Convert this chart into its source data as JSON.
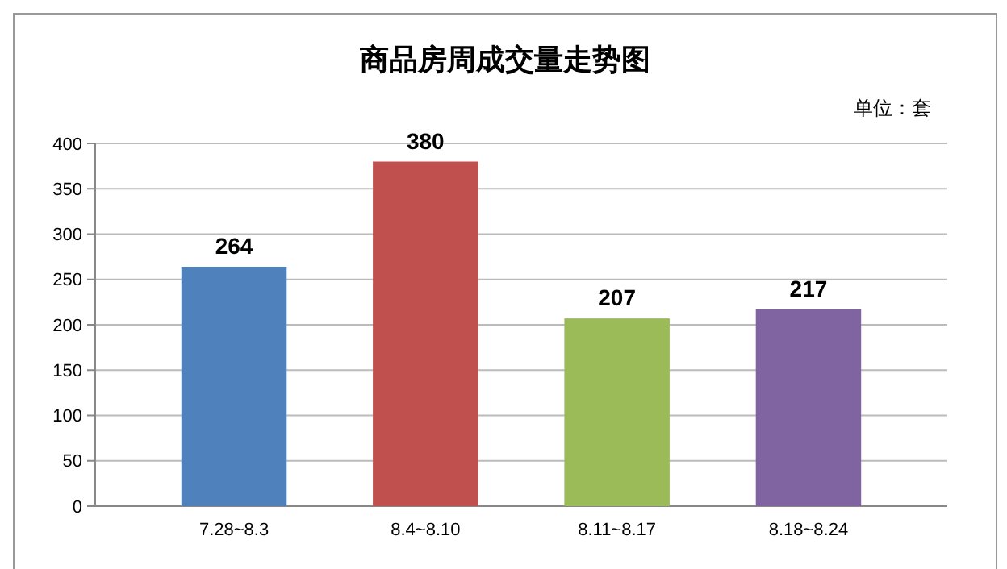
{
  "chart_data": {
    "type": "bar",
    "title": "商品房周成交量走势图",
    "annotations": [
      "单位：套"
    ],
    "categories": [
      "7.28~8.3",
      "8.4~8.10",
      "8.11~8.17",
      "8.18~8.24"
    ],
    "values": [
      264,
      380,
      207,
      217
    ],
    "colors": [
      "#4f81bd",
      "#c0504d",
      "#9bbb59",
      "#8064a2"
    ],
    "ylim": [
      0,
      400
    ],
    "yticks": [
      0,
      50,
      100,
      150,
      200,
      250,
      300,
      350,
      400
    ],
    "grid": "y",
    "data_labels": true
  }
}
